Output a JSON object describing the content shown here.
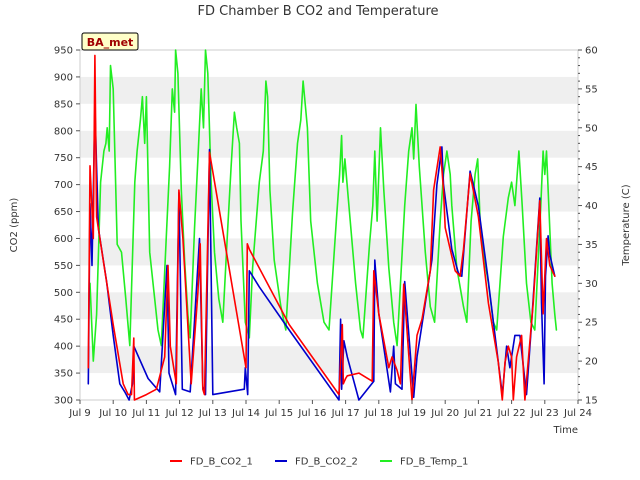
{
  "chart_data": {
    "type": "line",
    "title": "FD Chamber B CO2 and Temperature",
    "badge": "BA_met",
    "xlabel": "Time",
    "ylabel": "CO2 (ppm)",
    "y2label": "Temperature (C)",
    "xlim": [
      9,
      24
    ],
    "ylim": [
      300,
      950
    ],
    "y2lim": [
      15,
      60
    ],
    "x_ticks": [
      9,
      10,
      11,
      12,
      13,
      14,
      15,
      16,
      17,
      18,
      19,
      20,
      21,
      22,
      23,
      24
    ],
    "x_tick_labels": [
      "Jul 9",
      "Jul 10",
      "Jul 11",
      "Jul 12",
      "Jul 13",
      "Jul 14",
      "Jul 15",
      "Jul 16",
      "Jul 17",
      "Jul 18",
      "Jul 19",
      "Jul 20",
      "Jul 21",
      "Jul 22",
      "Jul 23",
      "Jul 24"
    ],
    "y_ticks": [
      300,
      350,
      400,
      450,
      500,
      550,
      600,
      650,
      700,
      750,
      800,
      850,
      900,
      950
    ],
    "y2_ticks": [
      15,
      20,
      25,
      30,
      35,
      40,
      45,
      50,
      55,
      60
    ],
    "grid": "horizontal bands",
    "legend_position": "bottom",
    "series": [
      {
        "name": "FD_B_CO2_1",
        "axis": "left",
        "color": "#ff0000",
        "points": [
          [
            9.25,
            360
          ],
          [
            9.3,
            735
          ],
          [
            9.4,
            600
          ],
          [
            9.45,
            940
          ],
          [
            9.5,
            640
          ],
          [
            9.7,
            560
          ],
          [
            10.0,
            440
          ],
          [
            10.3,
            330
          ],
          [
            10.45,
            310
          ],
          [
            10.55,
            310
          ],
          [
            10.62,
            415
          ],
          [
            10.64,
            300
          ],
          [
            11.0,
            310
          ],
          [
            11.3,
            320
          ],
          [
            11.55,
            380
          ],
          [
            11.65,
            550
          ],
          [
            11.72,
            400
          ],
          [
            11.9,
            330
          ],
          [
            11.98,
            690
          ],
          [
            12.1,
            600
          ],
          [
            12.35,
            330
          ],
          [
            12.55,
            500
          ],
          [
            12.62,
            590
          ],
          [
            12.7,
            320
          ],
          [
            12.75,
            310
          ],
          [
            12.9,
            760
          ],
          [
            14.0,
            360
          ],
          [
            14.04,
            590
          ],
          [
            14.1,
            580
          ],
          [
            15.3,
            440
          ],
          [
            16.8,
            310
          ],
          [
            16.9,
            440
          ],
          [
            16.93,
            330
          ],
          [
            17.0,
            340
          ],
          [
            17.05,
            345
          ],
          [
            17.4,
            350
          ],
          [
            17.8,
            335
          ],
          [
            17.85,
            540
          ],
          [
            18.0,
            460
          ],
          [
            18.3,
            360
          ],
          [
            18.4,
            380
          ],
          [
            18.55,
            355
          ],
          [
            18.65,
            330
          ],
          [
            18.75,
            515
          ],
          [
            19.0,
            300
          ],
          [
            19.15,
            420
          ],
          [
            19.3,
            450
          ],
          [
            19.55,
            540
          ],
          [
            19.65,
            690
          ],
          [
            19.85,
            770
          ],
          [
            19.95,
            690
          ],
          [
            20.0,
            620
          ],
          [
            20.3,
            540
          ],
          [
            20.45,
            530
          ],
          [
            20.55,
            580
          ],
          [
            20.75,
            720
          ],
          [
            21.0,
            640
          ],
          [
            21.3,
            480
          ],
          [
            21.6,
            370
          ],
          [
            21.72,
            300
          ],
          [
            21.8,
            370
          ],
          [
            21.9,
            400
          ],
          [
            22.0,
            380
          ],
          [
            22.05,
            300
          ],
          [
            22.15,
            380
          ],
          [
            22.3,
            420
          ],
          [
            22.4,
            300
          ],
          [
            22.65,
            480
          ],
          [
            22.85,
            670
          ],
          [
            22.95,
            460
          ],
          [
            23.05,
            600
          ],
          [
            23.15,
            550
          ],
          [
            23.3,
            530
          ]
        ]
      },
      {
        "name": "FD_B_CO2_2",
        "axis": "left",
        "color": "#0000cc",
        "points": [
          [
            9.25,
            330
          ],
          [
            9.3,
            665
          ],
          [
            9.36,
            550
          ],
          [
            9.45,
            845
          ],
          [
            9.55,
            620
          ],
          [
            9.8,
            520
          ],
          [
            10.0,
            420
          ],
          [
            10.2,
            330
          ],
          [
            10.35,
            315
          ],
          [
            10.48,
            300
          ],
          [
            10.58,
            330
          ],
          [
            10.62,
            400
          ],
          [
            11.05,
            340
          ],
          [
            11.4,
            315
          ],
          [
            11.62,
            550
          ],
          [
            11.68,
            350
          ],
          [
            11.88,
            310
          ],
          [
            11.98,
            685
          ],
          [
            12.08,
            320
          ],
          [
            12.32,
            315
          ],
          [
            12.52,
            520
          ],
          [
            12.6,
            600
          ],
          [
            12.7,
            325
          ],
          [
            12.78,
            310
          ],
          [
            12.9,
            765
          ],
          [
            13.0,
            310
          ],
          [
            13.95,
            320
          ],
          [
            13.98,
            360
          ],
          [
            14.05,
            310
          ],
          [
            14.1,
            540
          ],
          [
            14.4,
            510
          ],
          [
            15.3,
            430
          ],
          [
            16.8,
            300
          ],
          [
            16.85,
            450
          ],
          [
            16.88,
            320
          ],
          [
            16.95,
            410
          ],
          [
            17.05,
            380
          ],
          [
            17.4,
            300
          ],
          [
            17.85,
            335
          ],
          [
            17.88,
            560
          ],
          [
            18.0,
            460
          ],
          [
            18.35,
            315
          ],
          [
            18.45,
            400
          ],
          [
            18.5,
            330
          ],
          [
            18.7,
            320
          ],
          [
            18.78,
            520
          ],
          [
            19.05,
            305
          ],
          [
            19.15,
            380
          ],
          [
            19.3,
            440
          ],
          [
            19.6,
            560
          ],
          [
            19.75,
            700
          ],
          [
            19.9,
            770
          ],
          [
            19.95,
            700
          ],
          [
            20.2,
            580
          ],
          [
            20.4,
            535
          ],
          [
            20.5,
            530
          ],
          [
            20.75,
            725
          ],
          [
            21.0,
            660
          ],
          [
            21.3,
            520
          ],
          [
            21.72,
            310
          ],
          [
            21.85,
            400
          ],
          [
            21.95,
            360
          ],
          [
            22.1,
            420
          ],
          [
            22.25,
            420
          ],
          [
            22.45,
            310
          ],
          [
            22.6,
            440
          ],
          [
            22.85,
            675
          ],
          [
            22.9,
            480
          ],
          [
            22.98,
            330
          ],
          [
            23.02,
            530
          ],
          [
            23.1,
            605
          ],
          [
            23.15,
            570
          ],
          [
            23.3,
            530
          ]
        ]
      },
      {
        "name": "FD_B_Temp_1",
        "axis": "right",
        "color": "#22ee22",
        "points": [
          [
            9.3,
            30
          ],
          [
            9.4,
            20
          ],
          [
            9.5,
            26
          ],
          [
            9.62,
            43
          ],
          [
            9.72,
            47
          ],
          [
            9.78,
            48
          ],
          [
            9.82,
            50
          ],
          [
            9.88,
            47
          ],
          [
            9.92,
            58
          ],
          [
            10.0,
            55
          ],
          [
            10.12,
            35
          ],
          [
            10.25,
            34
          ],
          [
            10.38,
            28
          ],
          [
            10.5,
            22
          ],
          [
            10.65,
            43
          ],
          [
            10.72,
            47
          ],
          [
            10.82,
            51
          ],
          [
            10.88,
            54
          ],
          [
            10.95,
            48
          ],
          [
            11.0,
            54
          ],
          [
            11.1,
            34
          ],
          [
            11.25,
            28
          ],
          [
            11.35,
            24
          ],
          [
            11.45,
            22
          ],
          [
            11.6,
            36
          ],
          [
            11.7,
            45
          ],
          [
            11.78,
            55
          ],
          [
            11.85,
            52
          ],
          [
            11.88,
            60
          ],
          [
            11.95,
            57
          ],
          [
            12.05,
            42
          ],
          [
            12.15,
            33
          ],
          [
            12.25,
            26
          ],
          [
            12.32,
            23
          ],
          [
            12.45,
            37
          ],
          [
            12.55,
            46
          ],
          [
            12.65,
            55
          ],
          [
            12.72,
            50
          ],
          [
            12.78,
            60
          ],
          [
            12.85,
            57
          ],
          [
            12.95,
            43
          ],
          [
            13.05,
            34
          ],
          [
            13.18,
            28
          ],
          [
            13.3,
            25
          ],
          [
            13.45,
            37
          ],
          [
            13.55,
            45
          ],
          [
            13.65,
            52
          ],
          [
            13.72,
            50
          ],
          [
            13.8,
            48
          ],
          [
            13.85,
            38
          ],
          [
            13.98,
            25
          ],
          [
            14.1,
            23
          ],
          [
            14.2,
            32
          ],
          [
            14.4,
            43
          ],
          [
            14.52,
            47
          ],
          [
            14.6,
            56
          ],
          [
            14.65,
            54
          ],
          [
            14.72,
            42
          ],
          [
            14.85,
            33
          ],
          [
            15.05,
            27
          ],
          [
            15.2,
            24
          ],
          [
            15.4,
            39
          ],
          [
            15.55,
            48
          ],
          [
            15.65,
            51
          ],
          [
            15.72,
            56
          ],
          [
            15.85,
            50
          ],
          [
            15.95,
            38
          ],
          [
            16.15,
            30
          ],
          [
            16.35,
            25
          ],
          [
            16.5,
            24
          ],
          [
            16.72,
            38
          ],
          [
            16.82,
            44
          ],
          [
            16.88,
            49
          ],
          [
            16.92,
            43
          ],
          [
            16.98,
            46
          ],
          [
            17.1,
            40
          ],
          [
            17.3,
            30
          ],
          [
            17.45,
            24
          ],
          [
            17.52,
            23
          ],
          [
            17.72,
            35
          ],
          [
            17.82,
            40
          ],
          [
            17.88,
            47
          ],
          [
            17.95,
            38
          ],
          [
            18.05,
            50
          ],
          [
            18.15,
            42
          ],
          [
            18.3,
            32
          ],
          [
            18.45,
            25
          ],
          [
            18.55,
            22
          ],
          [
            18.78,
            40
          ],
          [
            18.9,
            47
          ],
          [
            19.0,
            50
          ],
          [
            19.05,
            46
          ],
          [
            19.12,
            53
          ],
          [
            19.22,
            45
          ],
          [
            19.4,
            34
          ],
          [
            19.55,
            27
          ],
          [
            19.68,
            25
          ],
          [
            19.85,
            38
          ],
          [
            19.95,
            44
          ],
          [
            20.05,
            47
          ],
          [
            20.15,
            44
          ],
          [
            20.2,
            40
          ],
          [
            20.35,
            32
          ],
          [
            20.55,
            27
          ],
          [
            20.65,
            25
          ],
          [
            20.78,
            38
          ],
          [
            20.9,
            44
          ],
          [
            20.98,
            46
          ],
          [
            21.05,
            38
          ],
          [
            21.15,
            34
          ],
          [
            21.3,
            30
          ],
          [
            21.45,
            25
          ],
          [
            21.55,
            24
          ],
          [
            21.75,
            36
          ],
          [
            21.9,
            41
          ],
          [
            22.0,
            43
          ],
          [
            22.1,
            40
          ],
          [
            22.22,
            47
          ],
          [
            22.32,
            40
          ],
          [
            22.45,
            30
          ],
          [
            22.58,
            25
          ],
          [
            22.7,
            24
          ],
          [
            22.88,
            40
          ],
          [
            22.95,
            47
          ],
          [
            23.0,
            44
          ],
          [
            23.05,
            47
          ],
          [
            23.12,
            40
          ],
          [
            23.22,
            30
          ],
          [
            23.3,
            26
          ],
          [
            23.35,
            24
          ]
        ]
      }
    ]
  }
}
